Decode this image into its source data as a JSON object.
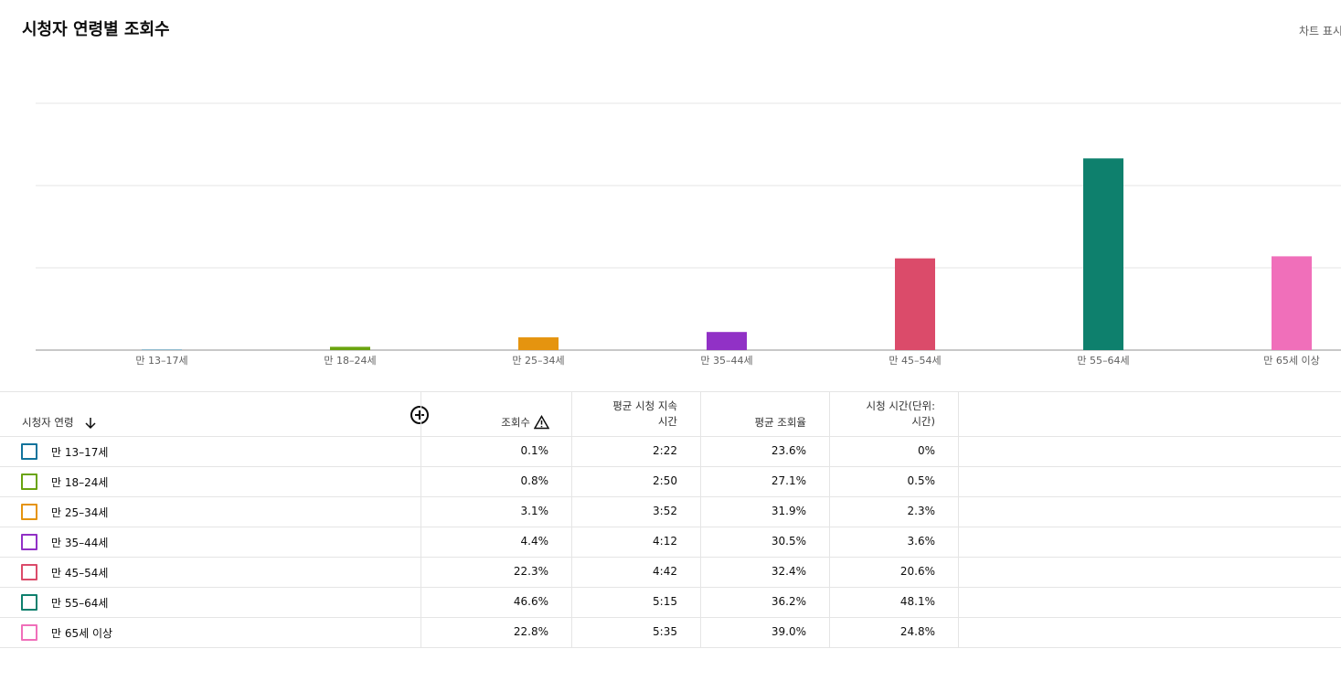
{
  "header": {
    "title": "시청자 연령별 조회수",
    "action": "차트 표시"
  },
  "chart_data": {
    "type": "bar",
    "categories": [
      "만 13–17세",
      "만 18–24세",
      "만 25–34세",
      "만 35–44세",
      "만 45–54세",
      "만 55–64세",
      "만 65세 이상"
    ],
    "values": [
      0.1,
      0.8,
      3.1,
      4.4,
      22.3,
      46.6,
      22.8
    ],
    "colors": [
      "#12739c",
      "#6aa40e",
      "#e5940f",
      "#9131c6",
      "#db4b6a",
      "#0e806d",
      "#f06fba"
    ],
    "ylim": [
      0,
      60
    ],
    "yticks": [
      0,
      20,
      40,
      60
    ],
    "grid": true
  },
  "table": {
    "columns": [
      "시청자 연령",
      "조회수",
      [
        "평균 시청 지속",
        "시간"
      ],
      "평균 조회율",
      [
        "시청 시간(단위:",
        "시간)"
      ]
    ],
    "rows": [
      [
        "0.1%",
        "2:22",
        "23.6%",
        "0%"
      ],
      [
        "0.8%",
        "2:50",
        "27.1%",
        "0.5%"
      ],
      [
        "3.1%",
        "3:52",
        "31.9%",
        "2.3%"
      ],
      [
        "4.4%",
        "4:12",
        "30.5%",
        "3.6%"
      ],
      [
        "22.3%",
        "4:42",
        "32.4%",
        "20.6%"
      ],
      [
        "46.6%",
        "5:15",
        "36.2%",
        "48.1%"
      ],
      [
        "22.8%",
        "5:35",
        "39.0%",
        "24.8%"
      ]
    ]
  }
}
